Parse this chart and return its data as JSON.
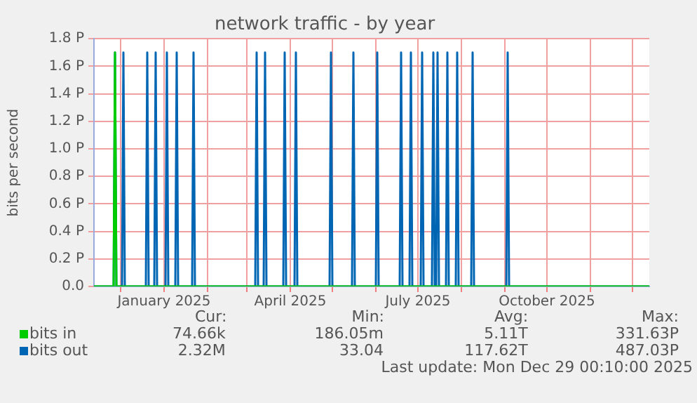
{
  "chart_data": {
    "type": "line",
    "title": "network traffic - by year",
    "ylabel": "bits per second",
    "xlim": [
      "2024-11-12",
      "2025-12-13"
    ],
    "xticks": [
      {
        "value": "2024-12-01",
        "label": null
      },
      {
        "value": "2025-01-01",
        "label": "January 2025"
      },
      {
        "value": "2025-02-01",
        "label": null
      },
      {
        "value": "2025-03-01",
        "label": null
      },
      {
        "value": "2025-04-01",
        "label": "April 2025"
      },
      {
        "value": "2025-05-01",
        "label": null
      },
      {
        "value": "2025-06-01",
        "label": null
      },
      {
        "value": "2025-07-01",
        "label": "July 2025"
      },
      {
        "value": "2025-08-01",
        "label": null
      },
      {
        "value": "2025-09-01",
        "label": null
      },
      {
        "value": "2025-10-01",
        "label": "October 2025"
      },
      {
        "value": "2025-11-01",
        "label": null
      },
      {
        "value": "2025-12-01",
        "label": null
      }
    ],
    "ylim": [
      0,
      1.8
    ],
    "yticks": [
      {
        "value": 0,
        "label": "0.0"
      },
      {
        "value": 0.2,
        "label": "0.2 P"
      },
      {
        "value": 0.4,
        "label": "0.4 P"
      },
      {
        "value": 0.6,
        "label": "0.6 P"
      },
      {
        "value": 0.8,
        "label": "0.8 P"
      },
      {
        "value": 1.0,
        "label": "1.0 P"
      },
      {
        "value": 1.2,
        "label": "1.2 P"
      },
      {
        "value": 1.4,
        "label": "1.4 P"
      },
      {
        "value": 1.6,
        "label": "1.6 P"
      },
      {
        "value": 1.8,
        "label": "1.8 P"
      }
    ],
    "grid": true,
    "legend": "bottom",
    "marker": "none",
    "line_style": "solid",
    "series": [
      {
        "name": "bits in",
        "color": "#00cc00",
        "x": [
          "2024-11-12",
          "2024-11-26",
          "2024-11-27",
          "2024-11-28",
          "2025-12-13"
        ],
        "values": [
          0,
          0,
          1.7,
          0,
          0
        ]
      },
      {
        "name": "bits out",
        "color": "#0066b3",
        "x": [
          "2024-11-12",
          "2024-11-26",
          "2024-11-27",
          "2024-11-28",
          "2024-12-02",
          "2024-12-03",
          "2024-12-04",
          "2024-12-19",
          "2024-12-20",
          "2024-12-21",
          "2024-12-25",
          "2024-12-26",
          "2024-12-27",
          "2025-01-02",
          "2025-01-03",
          "2025-01-04",
          "2025-01-09",
          "2025-01-10",
          "2025-01-11",
          "2025-01-21",
          "2025-01-22",
          "2025-01-23",
          "2025-03-07",
          "2025-03-08",
          "2025-03-09",
          "2025-03-13",
          "2025-03-14",
          "2025-03-15",
          "2025-03-27",
          "2025-03-28",
          "2025-03-29",
          "2025-04-04",
          "2025-04-05",
          "2025-04-06",
          "2025-04-29",
          "2025-04-30",
          "2025-05-01",
          "2025-05-15",
          "2025-05-16",
          "2025-05-17",
          "2025-06-01",
          "2025-06-02",
          "2025-06-03",
          "2025-06-18",
          "2025-06-19",
          "2025-06-20",
          "2025-06-25",
          "2025-06-26",
          "2025-06-27",
          "2025-07-03",
          "2025-07-04",
          "2025-07-05",
          "2025-07-11",
          "2025-07-12",
          "2025-07-13",
          "2025-07-14",
          "2025-07-15",
          "2025-07-16",
          "2025-07-21",
          "2025-07-22",
          "2025-07-23",
          "2025-07-28",
          "2025-07-29",
          "2025-07-30",
          "2025-08-08",
          "2025-08-09",
          "2025-08-10",
          "2025-09-02",
          "2025-09-03",
          "2025-09-04",
          "2025-12-13"
        ],
        "values": [
          0,
          0,
          1.7,
          0,
          0,
          1.7,
          0,
          0,
          1.7,
          0,
          0,
          1.7,
          0,
          0,
          1.7,
          0,
          0,
          1.7,
          0,
          0,
          1.7,
          0,
          0,
          1.7,
          0,
          0,
          1.7,
          0,
          0,
          1.7,
          0,
          0,
          1.7,
          0,
          0,
          1.7,
          0,
          0,
          1.7,
          0,
          0,
          1.7,
          0,
          0,
          1.7,
          0,
          0,
          1.7,
          0,
          0,
          1.7,
          0,
          0,
          1.7,
          0,
          0,
          1.7,
          0,
          0,
          1.7,
          0,
          0,
          1.7,
          0,
          0,
          1.7,
          0,
          0,
          1.7,
          0,
          0
        ]
      }
    ],
    "annotations": [
      "Cur:",
      "Min:",
      "Avg:",
      "Max:",
      "74.66k",
      "186.05m",
      "5.11T",
      "331.63P",
      "2.32M",
      "33.04",
      "117.62T",
      "487.03P",
      "Last update: Mon Dec 29 00:10:00 2025"
    ]
  }
}
